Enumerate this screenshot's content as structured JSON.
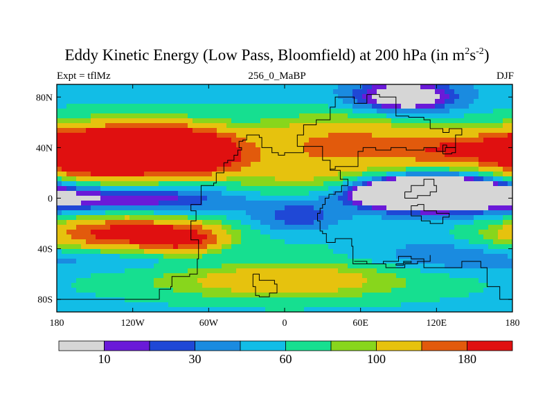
{
  "chart_data": {
    "type": "heatmap",
    "title_main": "Eddy Kinetic Energy (Low Pass, Bloomfield) at 200 hPa (in m",
    "title_sup1": "2",
    "title_mid": "s",
    "title_sup2": "-2",
    "title_end": ")",
    "subtitle_left": "Expt = tflMz",
    "subtitle_center": "256_0_MaBP",
    "subtitle_right": "DJF",
    "x_range": [
      -180,
      180
    ],
    "y_range": [
      -90,
      90
    ],
    "x_ticks": [
      {
        "value": -180,
        "label": "180"
      },
      {
        "value": -120,
        "label": "120W"
      },
      {
        "value": -60,
        "label": "60W"
      },
      {
        "value": 0,
        "label": "0"
      },
      {
        "value": 60,
        "label": "60E"
      },
      {
        "value": 120,
        "label": "120E"
      },
      {
        "value": 180,
        "label": "180"
      }
    ],
    "y_ticks": [
      {
        "value": 80,
        "label": "80N"
      },
      {
        "value": 40,
        "label": "40N"
      },
      {
        "value": 0,
        "label": "0"
      },
      {
        "value": -40,
        "label": "40S"
      },
      {
        "value": -80,
        "label": "80S"
      }
    ],
    "colorbar": {
      "colors": [
        "#d6d6d6",
        "#6a1ad8",
        "#1f48d6",
        "#1a8be0",
        "#12bde6",
        "#16df90",
        "#88d61c",
        "#e6c20e",
        "#e25a0c",
        "#e01010"
      ],
      "levels": [
        10,
        20,
        30,
        45,
        60,
        80,
        100,
        140,
        180
      ],
      "labels": [
        {
          "level": 10,
          "text": "10"
        },
        {
          "level": 30,
          "text": "30"
        },
        {
          "level": 60,
          "text": "60"
        },
        {
          "level": 100,
          "text": "100"
        },
        {
          "level": 180,
          "text": "180"
        }
      ]
    },
    "field_features": [
      {
        "lon": -130,
        "lat": 35,
        "value": 260,
        "slon": 38,
        "slat": 13
      },
      {
        "lon": -95,
        "lat": 42,
        "value": 150,
        "slon": 25,
        "slat": 10
      },
      {
        "lon": -160,
        "lat": 36,
        "value": 150,
        "slon": 18,
        "slat": 9
      },
      {
        "lon": -60,
        "lat": 35,
        "value": 140,
        "slon": 20,
        "slat": 10
      },
      {
        "lon": -130,
        "lat": -28,
        "value": 145,
        "slon": 40,
        "slat": 9
      },
      {
        "lon": -80,
        "lat": -33,
        "value": 120,
        "slon": 22,
        "slat": 8
      },
      {
        "lon": 20,
        "lat": 20,
        "value": 60,
        "slon": 55,
        "slat": 20
      },
      {
        "lon": 50,
        "lat": 50,
        "value": 45,
        "slon": 40,
        "slat": 12
      },
      {
        "lon": 140,
        "lat": 38,
        "value": 100,
        "slon": 40,
        "slat": 9
      },
      {
        "lon": 110,
        "lat": 5,
        "value": -110,
        "slon": 45,
        "slat": 10
      },
      {
        "lon": 100,
        "lat": 5,
        "value": -70,
        "slon": 25,
        "slat": 6
      },
      {
        "lon": 95,
        "lat": 80,
        "value": -70,
        "slon": 30,
        "slat": 10
      },
      {
        "lon": -100,
        "lat": -45,
        "value": -45,
        "slon": 80,
        "slat": 10
      },
      {
        "lon": 0,
        "lat": -65,
        "value": 70,
        "slon": 70,
        "slat": 10
      },
      {
        "lon": 110,
        "lat": -45,
        "value": -40,
        "slon": 55,
        "slat": 12
      },
      {
        "lon": -120,
        "lat": 0,
        "value": -35,
        "slon": 70,
        "slat": 8
      },
      {
        "lon": 10,
        "lat": -15,
        "value": -40,
        "slon": 25,
        "slat": 10
      }
    ],
    "continent_outlines": [
      [
        [
          -100,
          -80
        ],
        [
          -180,
          -80
        ]
      ],
      [
        [
          -100,
          -80
        ],
        [
          -99,
          -72
        ],
        [
          -90,
          -70
        ],
        [
          -89,
          -62
        ],
        [
          -75,
          -60
        ],
        [
          -69,
          -48
        ],
        [
          -68,
          -33
        ],
        [
          -74,
          -18
        ],
        [
          -70,
          -10
        ],
        [
          -74,
          -5
        ],
        [
          -66,
          5
        ],
        [
          -66,
          10
        ],
        [
          -56,
          12
        ],
        [
          -54,
          20
        ],
        [
          -48,
          28
        ],
        [
          -45,
          30
        ],
        [
          -40,
          34
        ],
        [
          -37,
          38
        ],
        [
          -34,
          40
        ],
        [
          -36,
          45
        ],
        [
          -33,
          46
        ],
        [
          -30,
          50
        ],
        [
          -25,
          50
        ],
        [
          -20,
          48
        ],
        [
          -18,
          40
        ],
        [
          -10,
          36
        ],
        [
          -5,
          34
        ],
        [
          0,
          36
        ],
        [
          15,
          41
        ],
        [
          30,
          30
        ],
        [
          36,
          22
        ],
        [
          44,
          15
        ],
        [
          50,
          10
        ],
        [
          45,
          5
        ],
        [
          40,
          3
        ],
        [
          35,
          0
        ],
        [
          32,
          -5
        ],
        [
          30,
          -8
        ],
        [
          28,
          -12
        ],
        [
          26,
          -18
        ],
        [
          28,
          -26
        ],
        [
          30,
          -28
        ],
        [
          33,
          -35
        ],
        [
          40,
          -32
        ],
        [
          48,
          -32
        ],
        [
          53,
          -38
        ],
        [
          54,
          -52
        ],
        [
          80,
          -55
        ],
        [
          95,
          -52
        ],
        [
          105,
          -50
        ],
        [
          110,
          -55
        ],
        [
          140,
          -50
        ],
        [
          155,
          -55
        ],
        [
          160,
          -70
        ],
        [
          170,
          -80
        ],
        [
          180,
          -80
        ]
      ],
      [
        [
          15,
          41
        ],
        [
          10,
          50
        ],
        [
          15,
          58
        ],
        [
          25,
          62
        ],
        [
          36,
          72
        ],
        [
          40,
          80
        ],
        [
          55,
          75
        ],
        [
          65,
          82
        ],
        [
          75,
          80
        ],
        [
          88,
          77
        ],
        [
          88,
          65
        ],
        [
          98,
          64
        ],
        [
          110,
          62
        ],
        [
          115,
          55
        ],
        [
          125,
          52
        ],
        [
          130,
          55
        ],
        [
          140,
          50
        ],
        [
          135,
          40
        ],
        [
          127,
          37
        ],
        [
          120,
          40
        ],
        [
          110,
          38
        ],
        [
          96,
          40
        ],
        [
          84,
          38
        ],
        [
          72,
          40
        ],
        [
          62,
          37
        ],
        [
          58,
          25
        ],
        [
          40,
          23
        ],
        [
          36,
          22
        ]
      ],
      [
        [
          -25,
          -60
        ],
        [
          -20,
          -65
        ],
        [
          -8,
          -68
        ],
        [
          -6,
          -75
        ],
        [
          -12,
          -78
        ],
        [
          -20,
          -77
        ],
        [
          -23,
          -70
        ],
        [
          -25,
          -60
        ]
      ],
      [
        [
          55,
          -50
        ],
        [
          65,
          -52
        ],
        [
          78,
          -50
        ],
        [
          90,
          -46
        ],
        [
          100,
          -48
        ],
        [
          110,
          -50
        ],
        [
          115,
          -45
        ]
      ],
      [
        [
          105,
          -5
        ],
        [
          110,
          -10
        ],
        [
          120,
          -12
        ],
        [
          130,
          -15
        ],
        [
          125,
          -20
        ],
        [
          115,
          -18
        ],
        [
          108,
          -14
        ],
        [
          100,
          -6
        ],
        [
          105,
          -5
        ]
      ],
      [
        [
          95,
          5
        ],
        [
          100,
          10
        ],
        [
          110,
          15
        ],
        [
          118,
          10
        ],
        [
          120,
          5
        ],
        [
          115,
          2
        ],
        [
          105,
          0
        ],
        [
          95,
          5
        ]
      ],
      [
        [
          125,
          35
        ],
        [
          132,
          36
        ],
        [
          135,
          40
        ],
        [
          128,
          42
        ],
        [
          125,
          35
        ]
      ],
      [
        [
          88,
          -52
        ],
        [
          94,
          -50
        ],
        [
          100,
          -51
        ],
        [
          94,
          -53
        ],
        [
          88,
          -52
        ]
      ]
    ]
  }
}
